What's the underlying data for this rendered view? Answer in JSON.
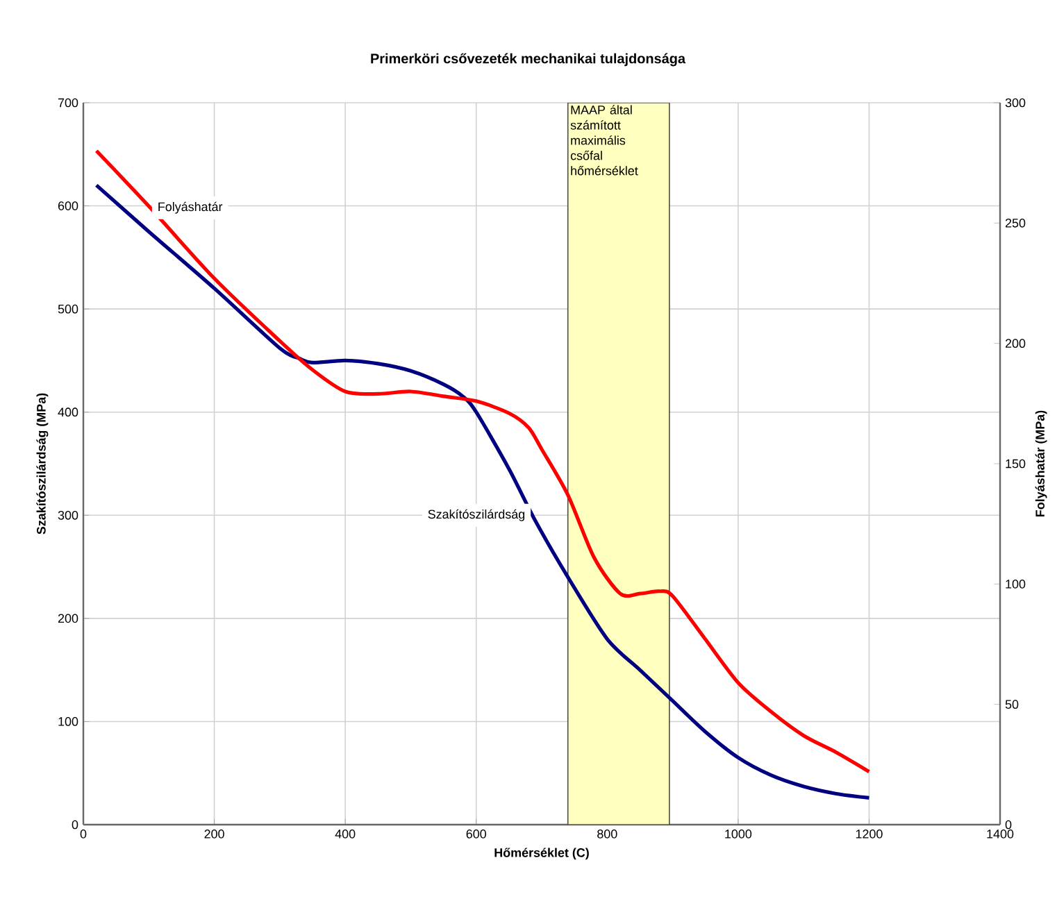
{
  "chart_data": {
    "type": "line",
    "title": "Primerköri csővezeték mechanikai tulajdonsága",
    "xlabel": "Hőmérséklet (C)",
    "ylabel": "Szakítószilárdság (MPa)",
    "y2label": "Folyáshatár (MPa)",
    "xlim": [
      0,
      1400
    ],
    "xticks": [
      0,
      200,
      400,
      600,
      800,
      1000,
      1200,
      1400
    ],
    "ylim": [
      0,
      700
    ],
    "yticks": [
      0,
      100,
      200,
      300,
      400,
      500,
      600,
      700
    ],
    "y2lim": [
      0,
      300
    ],
    "y2ticks": [
      0,
      50,
      100,
      150,
      200,
      250,
      300
    ],
    "grid": true,
    "marker": "none",
    "line_style": "solid",
    "bands": [
      {
        "axis": "x",
        "from": 740,
        "to": 895,
        "label": "MAAP által számított maximális csőfal hőmérséklet",
        "color": "#ffffc0"
      }
    ],
    "series": [
      {
        "name": "Szakítószilárdság",
        "color": "#000080",
        "x": [
          20,
          100,
          200,
          300,
          330,
          350,
          400,
          450,
          500,
          550,
          580,
          600,
          650,
          690,
          740,
          800,
          850,
          900,
          950,
          1000,
          1050,
          1100,
          1150,
          1200
        ],
        "values": [
          620,
          575,
          520,
          462,
          452,
          448,
          450,
          447,
          440,
          427,
          415,
          400,
          345,
          295,
          240,
          180,
          150,
          120,
          90,
          65,
          48,
          37,
          30,
          26
        ]
      },
      {
        "name": "Folyáshatár",
        "color": "#ff0000",
        "axis": "y2",
        "x": [
          20,
          100,
          200,
          300,
          350,
          400,
          450,
          500,
          550,
          600,
          650,
          680,
          700,
          740,
          780,
          820,
          850,
          880,
          900,
          950,
          1000,
          1050,
          1100,
          1150,
          1200
        ],
        "values": [
          280,
          257,
          227,
          201,
          189,
          180,
          179,
          180,
          178,
          176,
          171,
          165,
          156,
          137,
          111,
          96,
          96,
          97,
          95,
          77,
          59,
          47,
          37,
          30,
          22
        ]
      }
    ]
  }
}
